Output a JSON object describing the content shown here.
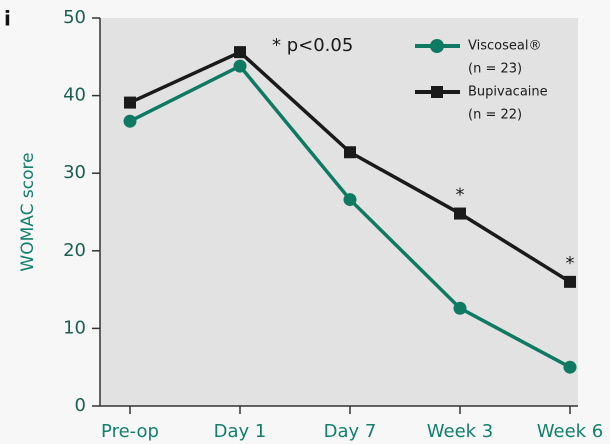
{
  "chart_data": {
    "type": "line",
    "panel_label": "i",
    "y_label": "WOMAC score",
    "note": "* p<0.05",
    "categories": [
      "Pre-op",
      "Day 1",
      "Day 7",
      "Week 3",
      "Week 6"
    ],
    "series": [
      {
        "name": "Viscoseal®",
        "note": "(n = 23)",
        "color": "#0f7a62",
        "marker": "circle",
        "values": [
          36.7,
          43.8,
          26.6,
          12.6,
          5.0
        ]
      },
      {
        "name": "Bupivacaine",
        "note": "(n = 22)",
        "color": "#1a1a1a",
        "marker": "square",
        "values": [
          39.1,
          45.6,
          32.7,
          24.8,
          16.0
        ]
      }
    ],
    "annotations": [
      {
        "text": "*",
        "x": "Week 3"
      },
      {
        "text": "*",
        "x": "Week 6"
      }
    ],
    "ylim": [
      0,
      50
    ],
    "yticks": [
      0,
      10,
      20,
      30,
      40,
      50
    ]
  }
}
